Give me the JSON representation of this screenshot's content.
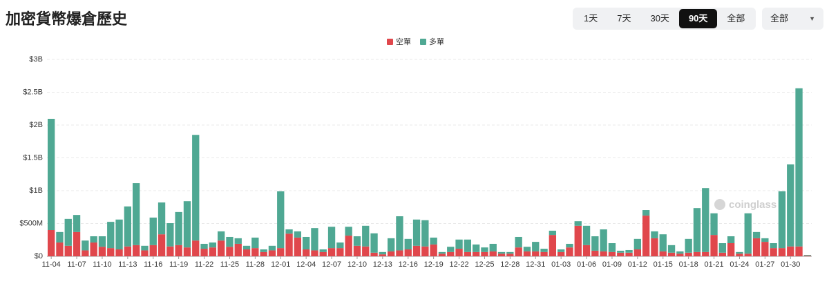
{
  "page": {
    "title": "加密貨幣爆倉歷史",
    "range_buttons": [
      "1天",
      "7天",
      "30天",
      "90天",
      "全部"
    ],
    "active_range_index": 3,
    "dropdown": "全部",
    "watermark": "coinglass"
  },
  "chart_data": {
    "type": "stacked_bar",
    "categories": [
      "11-04",
      null,
      null,
      "11-07",
      null,
      null,
      "11-10",
      null,
      null,
      "11-13",
      null,
      null,
      "11-16",
      null,
      null,
      "11-19",
      null,
      null,
      "11-22",
      null,
      null,
      "11-25",
      null,
      null,
      "11-28",
      null,
      null,
      "12-01",
      null,
      null,
      "12-04",
      null,
      null,
      "12-07",
      null,
      null,
      "12-10",
      null,
      null,
      "12-13",
      null,
      null,
      "12-16",
      null,
      null,
      "12-19",
      null,
      null,
      "12-22",
      null,
      null,
      "12-25",
      null,
      null,
      "12-28",
      null,
      null,
      "12-31",
      null,
      null,
      "01-03",
      null,
      null,
      "01-06",
      null,
      null,
      "01-09",
      null,
      null,
      "01-12",
      null,
      null,
      "01-15",
      null,
      null,
      "01-18",
      null,
      null,
      "01-21",
      null,
      null,
      "01-24",
      null,
      null,
      "01-27",
      null,
      null,
      "01-30",
      null,
      null
    ],
    "series": [
      {
        "name": "空單",
        "color": "#e0474c",
        "values": [
          400,
          210,
          160,
          370,
          90,
          210,
          145,
          125,
          105,
          150,
          170,
          90,
          170,
          335,
          150,
          170,
          135,
          240,
          115,
          135,
          240,
          145,
          190,
          105,
          125,
          65,
          90,
          125,
          345,
          285,
          105,
          90,
          65,
          125,
          125,
          315,
          160,
          150,
          55,
          30,
          75,
          90,
          105,
          160,
          150,
          180,
          40,
          65,
          115,
          65,
          65,
          65,
          75,
          40,
          40,
          135,
          75,
          75,
          65,
          325,
          65,
          135,
          465,
          170,
          85,
          75,
          65,
          55,
          55,
          105,
          620,
          275,
          75,
          55,
          40,
          55,
          65,
          65,
          325,
          55,
          200,
          40,
          40,
          275,
          220,
          125,
          125,
          150,
          150,
          10
        ]
      },
      {
        "name": "多單",
        "color": "#4fa893",
        "values": [
          1695,
          160,
          410,
          260,
          150,
          95,
          160,
          400,
          455,
          610,
          945,
          70,
          420,
          485,
          355,
          505,
          705,
          1610,
          75,
          75,
          140,
          150,
          85,
          55,
          160,
          40,
          70,
          865,
          65,
          95,
          190,
          340,
          40,
          325,
          85,
          135,
          145,
          315,
          295,
          35,
          200,
          520,
          160,
          400,
          400,
          105,
          25,
          80,
          140,
          190,
          115,
          70,
          115,
          25,
          25,
          160,
          70,
          145,
          50,
          65,
          40,
          55,
          70,
          295,
          220,
          335,
          135,
          30,
          40,
          160,
          85,
          105,
          260,
          115,
          35,
          210,
          670,
          975,
          330,
          145,
          105,
          25,
          615,
          95,
          55,
          75,
          865,
          1250,
          2410,
          10
        ]
      }
    ],
    "ylim": [
      0,
      3000
    ],
    "yticks": [
      {
        "value": 0,
        "label": "$0"
      },
      {
        "value": 500,
        "label": "$500M"
      },
      {
        "value": 1000,
        "label": "$1B"
      },
      {
        "value": 1500,
        "label": "$1.5B"
      },
      {
        "value": 2000,
        "label": "$2B"
      },
      {
        "value": 2500,
        "label": "$2.5B"
      },
      {
        "value": 3000,
        "label": "$3B"
      }
    ],
    "grid": true,
    "legend": "top"
  }
}
